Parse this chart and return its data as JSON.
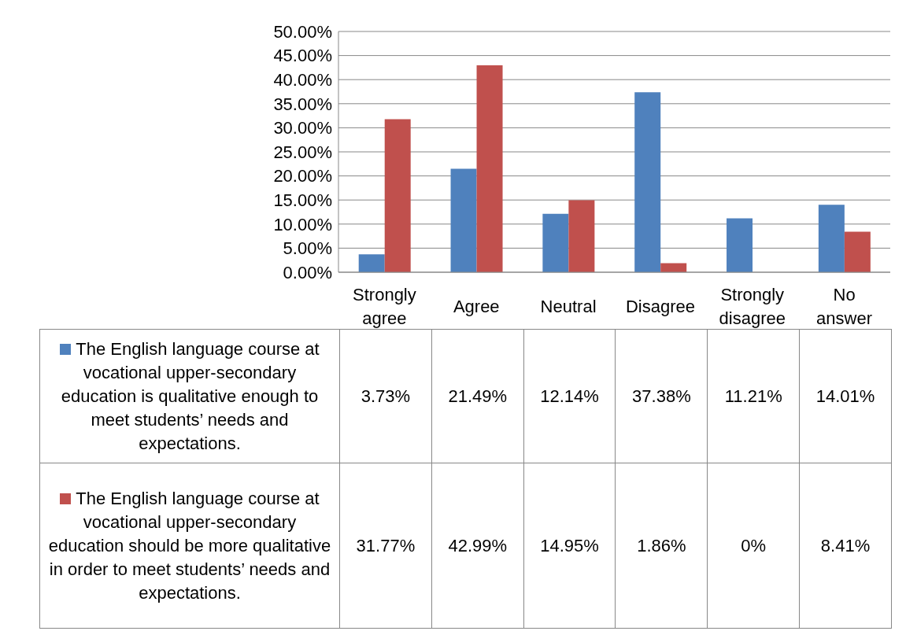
{
  "chart_data": {
    "type": "bar",
    "categories": [
      "Strongly agree",
      "Agree",
      "Neutral",
      "Disagree",
      "Strongly disagree",
      "No answer"
    ],
    "series": [
      {
        "name": "The English language course at vocational upper-secondary education is qualitative enough to meet students’ needs and expectations.",
        "color": "#4f81bd",
        "values": [
          3.73,
          21.49,
          12.14,
          37.38,
          11.21,
          14.01
        ],
        "value_labels": [
          "3.73%",
          "21.49%",
          "12.14%",
          "37.38%",
          "11.21%",
          "14.01%"
        ]
      },
      {
        "name": "The English language course at vocational upper-secondary education should be more qualitative in order to meet students’ needs and expectations.",
        "color": "#c0504d",
        "values": [
          31.77,
          42.99,
          14.95,
          1.86,
          0,
          8.41
        ],
        "value_labels": [
          "31.77%",
          "42.99%",
          "14.95%",
          "1.86%",
          "0%",
          "8.41%"
        ]
      }
    ],
    "ylim": [
      0,
      50
    ],
    "yticks": [
      {
        "value": 0,
        "label": "0.00%"
      },
      {
        "value": 5,
        "label": "5.00%"
      },
      {
        "value": 10,
        "label": "10.00%"
      },
      {
        "value": 15,
        "label": "15.00%"
      },
      {
        "value": 20,
        "label": "20.00%"
      },
      {
        "value": 25,
        "label": "25.00%"
      },
      {
        "value": 30,
        "label": "30.00%"
      },
      {
        "value": 35,
        "label": "35.00%"
      },
      {
        "value": 40,
        "label": "40.00%"
      },
      {
        "value": 45,
        "label": "45.00%"
      },
      {
        "value": 50,
        "label": "50.00%"
      }
    ],
    "grid": "y",
    "legend": "bottom"
  }
}
